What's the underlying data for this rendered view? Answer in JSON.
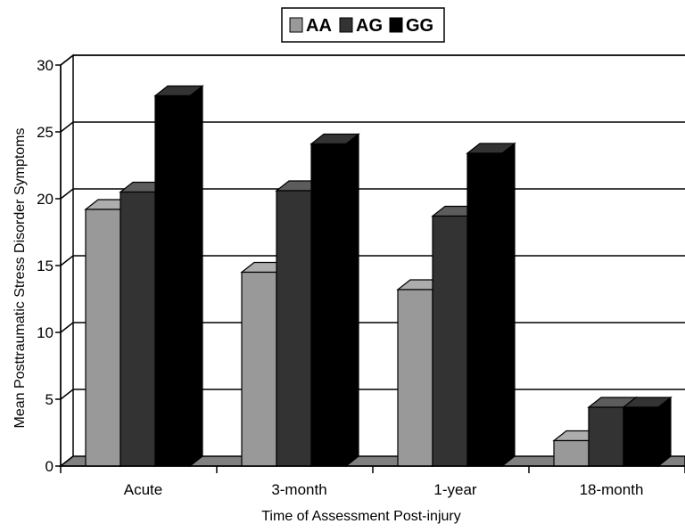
{
  "chart_data": {
    "type": "bar",
    "title": "",
    "xlabel": "Time of Assessment Post-injury",
    "ylabel": "Mean Posttraumatic Stress Disorder Symptoms",
    "categories": [
      "Acute",
      "3-month",
      "1-year",
      "18-month"
    ],
    "series": [
      {
        "name": "AA",
        "values": [
          19.2,
          14.5,
          13.2,
          1.9
        ],
        "color": "#999999"
      },
      {
        "name": "AG",
        "values": [
          20.5,
          20.6,
          18.7,
          4.4
        ],
        "color": "#333333"
      },
      {
        "name": "GG",
        "values": [
          27.7,
          24.1,
          23.4,
          4.4
        ],
        "color": "#000000"
      }
    ],
    "ylim": [
      0,
      30
    ],
    "yticks": [
      0,
      5,
      10,
      15,
      20,
      25,
      30
    ],
    "grid": true,
    "legend_position": "top",
    "style": "3d-bar"
  }
}
